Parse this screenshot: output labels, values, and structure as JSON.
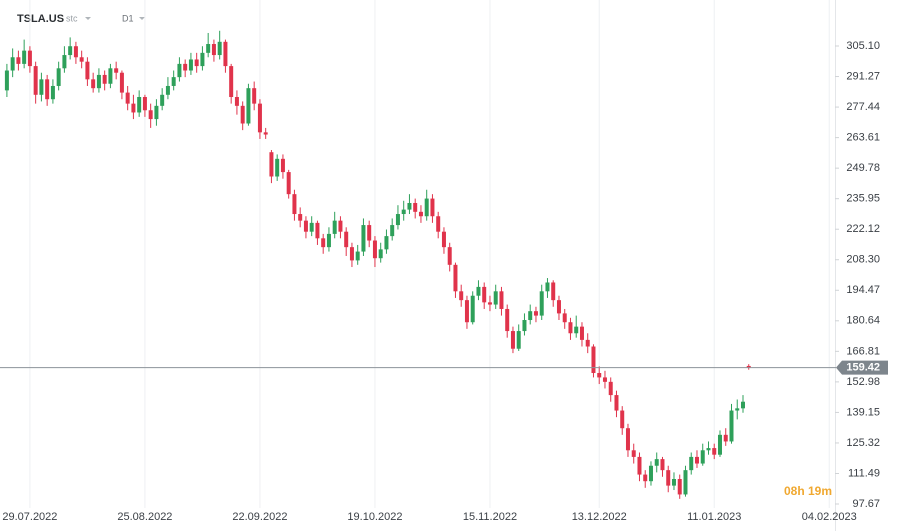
{
  "chart_data": {
    "type": "candlestick",
    "symbol": "TSLA.US",
    "instrument_type": "stc",
    "timeframe": "D1",
    "up_color": "#2ea05a",
    "down_color": "#e0334b",
    "open": [
      285,
      294,
      300,
      297,
      303,
      296,
      283,
      290,
      281,
      287,
      295,
      301,
      305,
      300,
      298,
      290,
      286,
      292,
      288,
      295,
      293,
      284,
      279,
      275,
      282,
      276,
      272,
      278,
      283,
      287,
      291,
      297,
      294,
      299,
      296,
      302,
      306,
      301,
      307,
      296,
      282,
      278,
      270,
      286,
      279,
      266,
      257,
      246,
      254,
      248,
      238,
      229,
      226,
      221,
      225,
      218,
      214,
      220,
      226,
      221,
      214,
      208,
      212,
      224,
      217,
      209,
      213,
      219,
      224,
      229,
      231,
      234,
      230,
      228,
      236,
      228,
      221,
      214,
      206,
      194,
      190,
      180,
      192,
      196,
      189,
      188,
      194,
      186,
      176,
      168,
      176,
      181,
      185,
      183,
      194,
      198,
      190,
      184,
      180,
      175,
      178,
      172,
      169,
      157,
      155,
      153,
      147,
      140,
      132,
      122,
      119,
      111,
      108,
      115,
      118,
      113,
      106,
      109,
      102,
      113,
      119,
      116,
      122,
      123,
      120,
      129,
      126,
      140,
      141,
      160.2
    ],
    "high": [
      297,
      304,
      303,
      308,
      305,
      298,
      293,
      292,
      290,
      298,
      305,
      309,
      307,
      303,
      300,
      293,
      295,
      294,
      297,
      298,
      294,
      287,
      283,
      285,
      283,
      279,
      281,
      286,
      291,
      294,
      300,
      299,
      302,
      302,
      305,
      311,
      308,
      312,
      308,
      297,
      285,
      280,
      288,
      289,
      281,
      268,
      258,
      256,
      256,
      249,
      240,
      232,
      228,
      228,
      226,
      220,
      223,
      230,
      228,
      223,
      216,
      215,
      227,
      226,
      219,
      216,
      222,
      227,
      233,
      235,
      238,
      236,
      233,
      240,
      238,
      230,
      223,
      216,
      207,
      197,
      192,
      194,
      199,
      198,
      192,
      197,
      196,
      188,
      178,
      179,
      184,
      188,
      187,
      197,
      200,
      199,
      192,
      186,
      182,
      183,
      180,
      175,
      170,
      160,
      158,
      155,
      149,
      142,
      134,
      125,
      121,
      113,
      117,
      121,
      119,
      115,
      112,
      111,
      115,
      121,
      122,
      125,
      126,
      125,
      131,
      132,
      143,
      145,
      147,
      161
    ],
    "low": [
      282,
      291,
      294,
      295,
      293,
      279,
      280,
      278,
      279,
      285,
      293,
      299,
      297,
      295,
      287,
      284,
      284,
      285,
      286,
      290,
      281,
      276,
      272,
      273,
      273,
      268,
      269,
      276,
      281,
      285,
      289,
      291,
      292,
      293,
      294,
      300,
      298,
      299,
      293,
      279,
      274,
      267,
      269,
      276,
      263,
      263,
      243,
      244,
      245,
      236,
      226,
      223,
      218,
      219,
      215,
      211,
      212,
      218,
      218,
      210,
      205,
      206,
      210,
      214,
      205,
      207,
      211,
      217,
      222,
      226,
      229,
      227,
      225,
      226,
      225,
      218,
      211,
      203,
      191,
      187,
      177,
      179,
      190,
      186,
      185,
      186,
      183,
      173,
      166,
      167,
      174,
      179,
      180,
      181,
      191,
      187,
      181,
      177,
      172,
      173,
      169,
      166,
      155,
      152,
      150,
      144,
      137,
      129,
      119,
      116,
      108,
      105,
      106,
      112,
      110,
      103,
      104,
      100,
      101,
      111,
      114,
      115,
      120,
      118,
      119,
      124,
      125,
      136,
      139,
      158.5
    ],
    "close": [
      294,
      300,
      297,
      303,
      296,
      283,
      290,
      281,
      287,
      295,
      301,
      305,
      300,
      298,
      290,
      286,
      292,
      288,
      295,
      293,
      284,
      279,
      275,
      282,
      276,
      272,
      278,
      283,
      287,
      291,
      297,
      294,
      299,
      296,
      302,
      306,
      301,
      307,
      296,
      282,
      278,
      270,
      286,
      279,
      266,
      265,
      246,
      254,
      248,
      238,
      229,
      226,
      221,
      225,
      218,
      214,
      220,
      226,
      221,
      214,
      208,
      212,
      224,
      217,
      209,
      213,
      219,
      224,
      229,
      231,
      234,
      230,
      228,
      236,
      228,
      221,
      214,
      206,
      194,
      190,
      180,
      192,
      196,
      189,
      188,
      194,
      186,
      176,
      168,
      176,
      181,
      185,
      183,
      194,
      198,
      190,
      184,
      180,
      175,
      178,
      172,
      169,
      157,
      155,
      153,
      147,
      140,
      132,
      122,
      119,
      111,
      108,
      115,
      118,
      113,
      106,
      109,
      102,
      113,
      119,
      116,
      122,
      123,
      120,
      129,
      126,
      140,
      141,
      144,
      159.42
    ],
    "current_price": 159.42,
    "countdown": "08h 19m",
    "xlim": [
      -1.2,
      144
    ],
    "xticks": [
      {
        "value": 4,
        "label": "29.07.2022"
      },
      {
        "value": 24,
        "label": "25.08.2022"
      },
      {
        "value": 44,
        "label": "22.09.2022"
      },
      {
        "value": 64,
        "label": "19.10.2022"
      },
      {
        "value": 84,
        "label": "15.11.2022"
      },
      {
        "value": 103,
        "label": "13.12.2022"
      },
      {
        "value": 123,
        "label": "11.01.2023"
      },
      {
        "value": 143,
        "label": "04.02.2023"
      }
    ],
    "ylim": [
      94.05,
      323.67
    ],
    "yticks": [
      {
        "value": 305.1,
        "label": "305.10"
      },
      291.27,
      277.44,
      263.61,
      249.78,
      235.95,
      222.12,
      {
        "value": 208.3,
        "label": "208.30"
      },
      194.47,
      180.64,
      166.81,
      152.98,
      139.15,
      125.32,
      111.49,
      97.67
    ],
    "grid": true
  }
}
